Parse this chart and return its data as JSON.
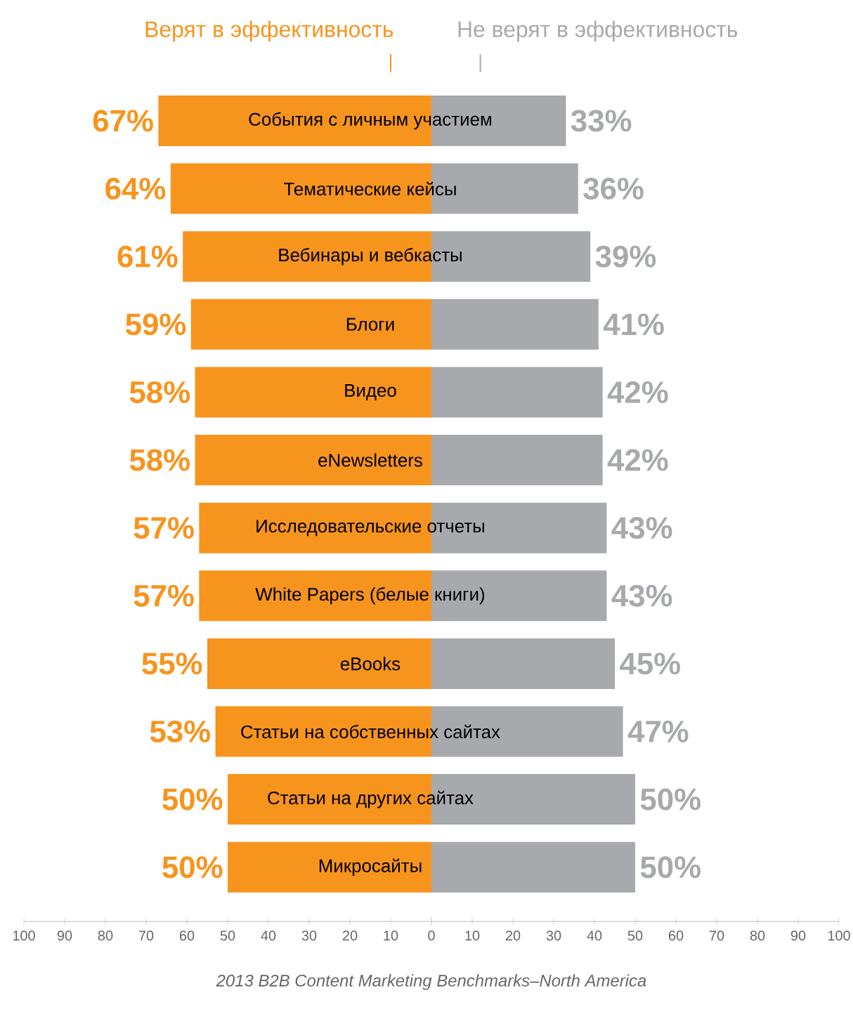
{
  "chart_data": [
    {
      "type": "bar",
      "orientation": "horizontal",
      "legend": "top",
      "categories": [
        "События с личным участием",
        "Тематические кейсы",
        "Вебинары и вебкасты",
        "Блоги",
        "Видео",
        "eNewsletters",
        "Исследовательские отчеты",
        "White Papers (белые книги)",
        "eBooks",
        "Статьи на собственных сайтах",
        "Статьи на других сайтах",
        "Микросайты"
      ],
      "series": [
        {
          "name": "Верят в эффективность",
          "color": "#f7941d",
          "values": [
            67,
            64,
            61,
            59,
            58,
            58,
            57,
            57,
            55,
            53,
            50,
            50
          ],
          "value_labels": [
            "67%",
            "64%",
            "61%",
            "59%",
            "58%",
            "58%",
            "57%",
            "57%",
            "55%",
            "53%",
            "50%",
            "50%"
          ]
        }
      ],
      "xlim": [
        100,
        0
      ],
      "xticks": [
        100,
        90,
        80,
        70,
        60,
        50,
        40,
        30,
        20,
        10,
        0
      ],
      "annotations": [
        "2013 B2B Content Marketing Benchmarks–North America"
      ]
    },
    {
      "type": "bar",
      "orientation": "horizontal",
      "legend": "top",
      "categories": [
        null,
        null,
        null,
        null,
        null,
        null,
        null,
        null,
        null,
        null,
        null,
        null
      ],
      "series": [
        {
          "name": "Не верят в эффективность",
          "color": "#a7a9ac",
          "values": [
            33,
            36,
            39,
            41,
            42,
            42,
            43,
            43,
            45,
            47,
            50,
            50
          ],
          "value_labels": [
            "33%",
            "36%",
            "39%",
            "41%",
            "42%",
            "42%",
            "43%",
            "43%",
            "45%",
            "47%",
            "50%",
            "50%"
          ]
        }
      ],
      "xlim": [
        0,
        100
      ],
      "xticks": [
        {
          "value": 0,
          "label": null
        },
        10,
        20,
        30,
        40,
        50,
        60,
        70,
        80,
        90,
        100
      ]
    }
  ]
}
